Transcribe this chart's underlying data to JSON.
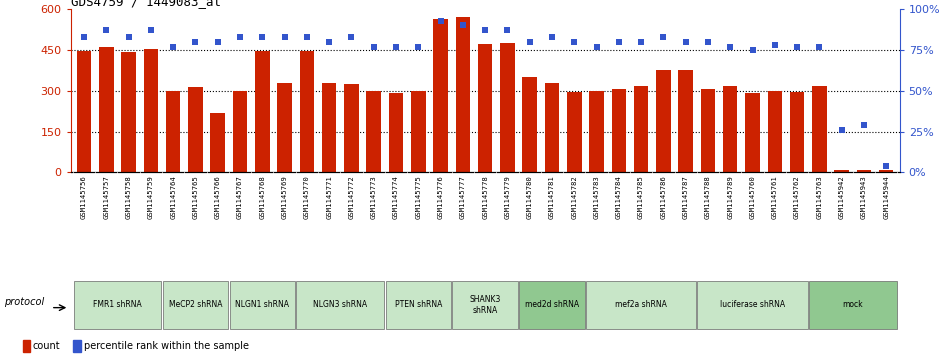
{
  "title": "GDS4759 / 1449083_at",
  "samples": [
    "GSM1145756",
    "GSM1145757",
    "GSM1145758",
    "GSM1145759",
    "GSM1145764",
    "GSM1145765",
    "GSM1145766",
    "GSM1145767",
    "GSM1145768",
    "GSM1145769",
    "GSM1145770",
    "GSM1145771",
    "GSM1145772",
    "GSM1145773",
    "GSM1145774",
    "GSM1145775",
    "GSM1145776",
    "GSM1145777",
    "GSM1145778",
    "GSM1145779",
    "GSM1145780",
    "GSM1145781",
    "GSM1145782",
    "GSM1145783",
    "GSM1145784",
    "GSM1145785",
    "GSM1145786",
    "GSM1145787",
    "GSM1145788",
    "GSM1145789",
    "GSM1145760",
    "GSM1145761",
    "GSM1145762",
    "GSM1145763",
    "GSM1145942",
    "GSM1145943",
    "GSM1145944"
  ],
  "counts": [
    445,
    462,
    443,
    452,
    300,
    312,
    218,
    300,
    447,
    330,
    446,
    328,
    323,
    300,
    290,
    298,
    565,
    572,
    470,
    475,
    350,
    330,
    295,
    300,
    305,
    318,
    375,
    375,
    305,
    318,
    290,
    300,
    295,
    318,
    8,
    10,
    8
  ],
  "percentiles": [
    83,
    87,
    83,
    87,
    77,
    80,
    80,
    83,
    83,
    83,
    83,
    80,
    83,
    77,
    77,
    77,
    93,
    90,
    87,
    87,
    80,
    83,
    80,
    77,
    80,
    80,
    83,
    80,
    80,
    77,
    75,
    78,
    77,
    77,
    26,
    29,
    4
  ],
  "protocols": [
    {
      "label": "FMR1 shRNA",
      "start": 0,
      "end": 4,
      "color": "#c8e6c8"
    },
    {
      "label": "MeCP2 shRNA",
      "start": 4,
      "end": 7,
      "color": "#c8e6c8"
    },
    {
      "label": "NLGN1 shRNA",
      "start": 7,
      "end": 10,
      "color": "#c8e6c8"
    },
    {
      "label": "NLGN3 shRNA",
      "start": 10,
      "end": 14,
      "color": "#c8e6c8"
    },
    {
      "label": "PTEN shRNA",
      "start": 14,
      "end": 17,
      "color": "#c8e6c8"
    },
    {
      "label": "SHANK3\nshRNA",
      "start": 17,
      "end": 20,
      "color": "#c8e6c8"
    },
    {
      "label": "med2d shRNA",
      "start": 20,
      "end": 23,
      "color": "#90c890"
    },
    {
      "label": "mef2a shRNA",
      "start": 23,
      "end": 28,
      "color": "#c8e6c8"
    },
    {
      "label": "luciferase shRNA",
      "start": 28,
      "end": 33,
      "color": "#c8e6c8"
    },
    {
      "label": "mock",
      "start": 33,
      "end": 37,
      "color": "#90c890"
    }
  ],
  "bar_color": "#cc2200",
  "dot_color": "#3355cc",
  "ylim_left": [
    0,
    600
  ],
  "ylim_right": [
    0,
    100
  ],
  "yticks_left": [
    0,
    150,
    300,
    450,
    600
  ],
  "yticks_right": [
    0,
    25,
    50,
    75,
    100
  ]
}
